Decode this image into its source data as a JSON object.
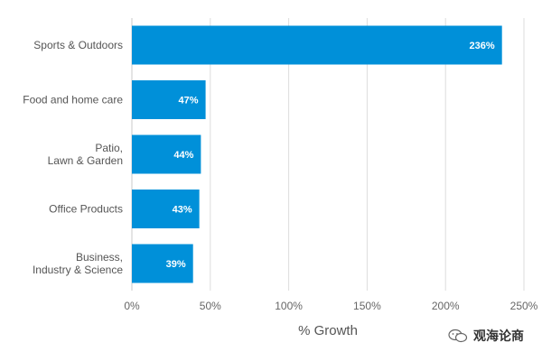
{
  "chart_data": {
    "type": "bar",
    "orientation": "horizontal",
    "title": "",
    "xlabel": "% Growth",
    "ylabel": "",
    "categories": [
      [
        "Sports & Outdoors"
      ],
      [
        "Food and home care"
      ],
      [
        "Patio,",
        "Lawn & Garden"
      ],
      [
        "Office Products"
      ],
      [
        "Business,",
        "Industry & Science"
      ]
    ],
    "values": [
      236,
      47,
      44,
      43,
      39
    ],
    "value_labels": [
      "236%",
      "47%",
      "44%",
      "43%",
      "39%"
    ],
    "xlim": [
      0,
      250
    ],
    "xticks": [
      0,
      50,
      100,
      150,
      200,
      250
    ],
    "xtick_labels": [
      "0%",
      "50%",
      "100%",
      "150%",
      "200%",
      "250%"
    ],
    "bar_color": "#0090d9",
    "grid": "vertical",
    "legend": "none"
  },
  "watermark": {
    "text": "观海论商",
    "icon": "wechat-icon"
  }
}
